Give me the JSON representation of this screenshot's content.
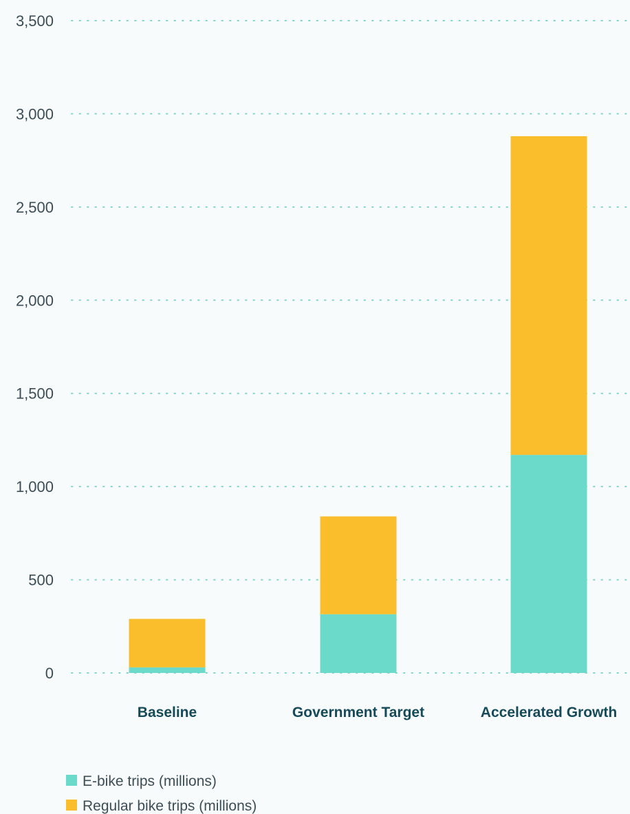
{
  "chart_data": {
    "type": "bar",
    "stacked": true,
    "categories": [
      "Baseline",
      "Government Target",
      "Accelerated Growth"
    ],
    "series": [
      {
        "name": "E-bike trips (millions)",
        "values": [
          30,
          315,
          1170
        ],
        "color": "#6cdacb"
      },
      {
        "name": "Regular bike trips (millions)",
        "values": [
          260,
          525,
          1710
        ],
        "color": "#fabd2b"
      }
    ],
    "ylim": [
      0,
      3500
    ],
    "y_ticks": [
      "0",
      "500",
      "1,000",
      "1,500",
      "2,000",
      "2,500",
      "3,000",
      "3,500"
    ],
    "y_tick_values": [
      0,
      500,
      1000,
      1500,
      2000,
      2500,
      3000,
      3500
    ],
    "grid": true,
    "grid_style": "dotted",
    "grid_color": "#7fd6c9",
    "legend_position": "bottom-left",
    "background": "#f7fbfc"
  }
}
